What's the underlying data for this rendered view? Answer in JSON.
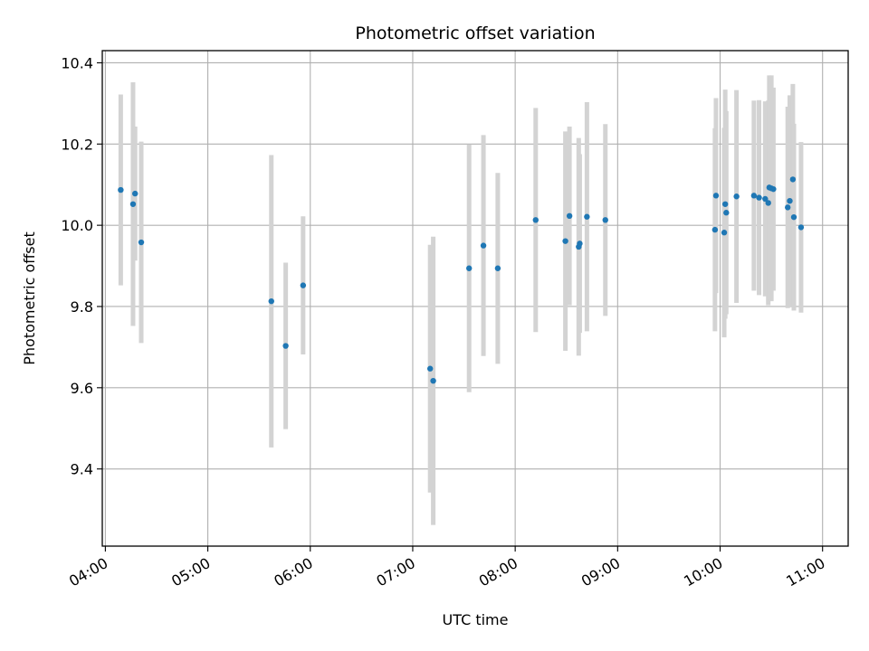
{
  "chart_data": {
    "type": "scatter",
    "title": "Photometric offset variation",
    "xlabel": "UTC time",
    "ylabel": "Photometric offset",
    "x_unit": "time of day (UTC, decimal hours)",
    "xlim": [
      3.97,
      11.25
    ],
    "ylim": [
      9.21,
      10.43
    ],
    "x_ticks": [
      4,
      5,
      6,
      7,
      8,
      9,
      10,
      11
    ],
    "x_tick_labels": [
      "04:00",
      "05:00",
      "06:00",
      "07:00",
      "08:00",
      "09:00",
      "10:00",
      "11:00"
    ],
    "y_ticks": [
      9.4,
      9.6,
      9.8,
      10.0,
      10.2,
      10.4
    ],
    "y_tick_labels": [
      "9.4",
      "9.6",
      "9.8",
      "10.0",
      "10.2",
      "10.4"
    ],
    "grid": true,
    "colors": {
      "point": "#1f77b4",
      "errorbar": "#d3d3d3",
      "grid": "#b0b0b0"
    },
    "points": [
      {
        "x": 4.15,
        "y": 10.087,
        "err": 0.235
      },
      {
        "x": 4.27,
        "y": 10.052,
        "err": 0.3
      },
      {
        "x": 4.29,
        "y": 10.078,
        "err": 0.165
      },
      {
        "x": 4.35,
        "y": 9.958,
        "err": 0.248
      },
      {
        "x": 5.62,
        "y": 9.813,
        "err": 0.36
      },
      {
        "x": 5.76,
        "y": 9.703,
        "err": 0.205
      },
      {
        "x": 5.93,
        "y": 9.852,
        "err": 0.17
      },
      {
        "x": 7.17,
        "y": 9.647,
        "err": 0.305
      },
      {
        "x": 7.2,
        "y": 9.617,
        "err": 0.355
      },
      {
        "x": 7.55,
        "y": 9.894,
        "err": 0.305
      },
      {
        "x": 7.69,
        "y": 9.95,
        "err": 0.272
      },
      {
        "x": 7.83,
        "y": 9.894,
        "err": 0.235
      },
      {
        "x": 8.2,
        "y": 10.013,
        "err": 0.276
      },
      {
        "x": 8.49,
        "y": 9.961,
        "err": 0.27
      },
      {
        "x": 8.53,
        "y": 10.023,
        "err": 0.22
      },
      {
        "x": 8.62,
        "y": 9.947,
        "err": 0.268
      },
      {
        "x": 8.63,
        "y": 9.955,
        "err": 0.22
      },
      {
        "x": 8.7,
        "y": 10.021,
        "err": 0.282
      },
      {
        "x": 8.88,
        "y": 10.013,
        "err": 0.236
      },
      {
        "x": 9.95,
        "y": 9.989,
        "err": 0.25
      },
      {
        "x": 9.96,
        "y": 10.073,
        "err": 0.24
      },
      {
        "x": 10.04,
        "y": 9.982,
        "err": 0.258
      },
      {
        "x": 10.05,
        "y": 10.052,
        "err": 0.282
      },
      {
        "x": 10.06,
        "y": 10.031,
        "err": 0.25
      },
      {
        "x": 10.16,
        "y": 10.071,
        "err": 0.262
      },
      {
        "x": 10.33,
        "y": 10.073,
        "err": 0.234
      },
      {
        "x": 10.38,
        "y": 10.068,
        "err": 0.24
      },
      {
        "x": 10.44,
        "y": 10.065,
        "err": 0.24
      },
      {
        "x": 10.47,
        "y": 10.055,
        "err": 0.252
      },
      {
        "x": 10.48,
        "y": 10.093,
        "err": 0.276
      },
      {
        "x": 10.5,
        "y": 10.091,
        "err": 0.278
      },
      {
        "x": 10.52,
        "y": 10.089,
        "err": 0.25
      },
      {
        "x": 10.66,
        "y": 10.044,
        "err": 0.248
      },
      {
        "x": 10.68,
        "y": 10.06,
        "err": 0.26
      },
      {
        "x": 10.71,
        "y": 10.113,
        "err": 0.235
      },
      {
        "x": 10.72,
        "y": 10.02,
        "err": 0.23
      },
      {
        "x": 10.79,
        "y": 9.995,
        "err": 0.21
      }
    ]
  }
}
